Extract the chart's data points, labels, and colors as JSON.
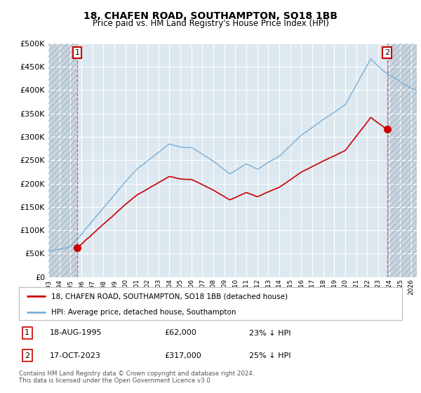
{
  "title": "18, CHAFEN ROAD, SOUTHAMPTON, SO18 1BB",
  "subtitle": "Price paid vs. HM Land Registry's House Price Index (HPI)",
  "ylim": [
    0,
    500000
  ],
  "yticks": [
    0,
    50000,
    100000,
    150000,
    200000,
    250000,
    300000,
    350000,
    400000,
    450000,
    500000
  ],
  "ytick_labels": [
    "£0",
    "£50K",
    "£100K",
    "£150K",
    "£200K",
    "£250K",
    "£300K",
    "£350K",
    "£400K",
    "£450K",
    "£500K"
  ],
  "xmin": 1993.0,
  "xmax": 2026.5,
  "sale1_date": 1995.63,
  "sale1_price": 62000,
  "sale2_date": 2023.79,
  "sale2_price": 317000,
  "sale_color": "#cc0000",
  "hpi_color": "#7aaed6",
  "background_color": "#dde8f0",
  "hatch_bg_color": "#c8d4de",
  "grid_color": "#ffffff",
  "legend_label_red": "18, CHAFEN ROAD, SOUTHAMPTON, SO18 1BB (detached house)",
  "legend_label_blue": "HPI: Average price, detached house, Southampton",
  "footer": "Contains HM Land Registry data © Crown copyright and database right 2024.\nThis data is licensed under the Open Government Licence v3.0.",
  "note1_date": "18-AUG-1995",
  "note1_price": "£62,000",
  "note1_hpi": "23% ↓ HPI",
  "note2_date": "17-OCT-2023",
  "note2_price": "£317,000",
  "note2_hpi": "25% ↓ HPI"
}
